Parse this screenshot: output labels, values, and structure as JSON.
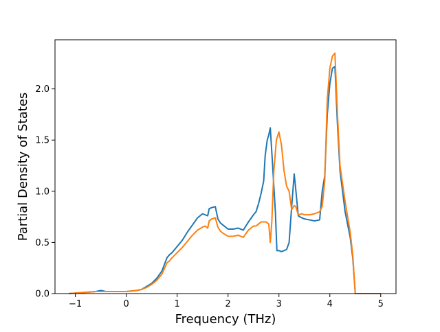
{
  "chart_data": {
    "type": "line",
    "title": "",
    "xlabel": "Frequency (THz)",
    "ylabel": "Partial Density of States",
    "xlim": [
      -1.4,
      5.3
    ],
    "ylim": [
      0,
      2.48
    ],
    "xticks": [
      -1,
      0,
      1,
      2,
      3,
      4,
      5
    ],
    "yticks": [
      0.0,
      0.5,
      1.0,
      1.5,
      2.0
    ],
    "ytick_labels": [
      "0.0",
      "0.5",
      "1.0",
      "1.5",
      "2.0"
    ],
    "grid": false,
    "legend": "none",
    "series": [
      {
        "color": "#1f77b4",
        "x": [
          -1.13,
          -0.6,
          -0.5,
          -0.4,
          -0.3,
          -0.2,
          0,
          0.2,
          0.3,
          0.4,
          0.5,
          0.6,
          0.7,
          0.8,
          0.85,
          0.9,
          1.0,
          1.1,
          1.2,
          1.3,
          1.4,
          1.5,
          1.55,
          1.6,
          1.63,
          1.68,
          1.75,
          1.8,
          1.85,
          1.9,
          2.0,
          2.1,
          2.2,
          2.3,
          2.4,
          2.5,
          2.55,
          2.6,
          2.65,
          2.7,
          2.73,
          2.77,
          2.8,
          2.83,
          2.87,
          2.93,
          2.96,
          3.0,
          3.05,
          3.15,
          3.2,
          3.25,
          3.3,
          3.33,
          3.38,
          3.45,
          3.5,
          3.6,
          3.7,
          3.8,
          3.85,
          3.9,
          3.95,
          4.0,
          4.05,
          4.1,
          4.15,
          4.2,
          4.3,
          4.4,
          4.45,
          4.5,
          4.6,
          5.0
        ],
        "y": [
          0.0,
          0.02,
          0.03,
          0.02,
          0.02,
          0.02,
          0.02,
          0.03,
          0.04,
          0.07,
          0.1,
          0.15,
          0.22,
          0.35,
          0.38,
          0.4,
          0.46,
          0.52,
          0.6,
          0.67,
          0.74,
          0.78,
          0.77,
          0.76,
          0.83,
          0.84,
          0.85,
          0.73,
          0.69,
          0.67,
          0.63,
          0.63,
          0.64,
          0.62,
          0.7,
          0.77,
          0.8,
          0.88,
          0.98,
          1.1,
          1.35,
          1.5,
          1.55,
          1.62,
          1.3,
          0.8,
          0.42,
          0.42,
          0.41,
          0.43,
          0.5,
          0.85,
          1.17,
          1.02,
          0.76,
          0.74,
          0.73,
          0.72,
          0.71,
          0.72,
          1.0,
          1.15,
          1.75,
          2.05,
          2.2,
          2.22,
          1.65,
          1.2,
          0.8,
          0.55,
          0.35,
          0.0,
          0.0,
          0.0
        ]
      },
      {
        "color": "#ff7f0e",
        "x": [
          -1.13,
          -0.6,
          -0.5,
          -0.4,
          -0.3,
          -0.2,
          0,
          0.2,
          0.3,
          0.4,
          0.5,
          0.6,
          0.7,
          0.8,
          0.85,
          0.9,
          1.0,
          1.1,
          1.2,
          1.3,
          1.4,
          1.5,
          1.55,
          1.6,
          1.63,
          1.68,
          1.75,
          1.8,
          1.85,
          1.9,
          2.0,
          2.1,
          2.2,
          2.3,
          2.4,
          2.5,
          2.55,
          2.6,
          2.65,
          2.7,
          2.75,
          2.8,
          2.83,
          2.86,
          2.9,
          2.95,
          3.0,
          3.05,
          3.1,
          3.15,
          3.2,
          3.25,
          3.3,
          3.33,
          3.38,
          3.45,
          3.5,
          3.6,
          3.7,
          3.8,
          3.85,
          3.9,
          3.95,
          4.0,
          4.05,
          4.1,
          4.15,
          4.2,
          4.3,
          4.4,
          4.45,
          4.5,
          4.6,
          5.0
        ],
        "y": [
          0.0,
          0.02,
          0.02,
          0.02,
          0.02,
          0.02,
          0.02,
          0.03,
          0.04,
          0.06,
          0.09,
          0.13,
          0.19,
          0.3,
          0.32,
          0.35,
          0.4,
          0.45,
          0.51,
          0.57,
          0.62,
          0.65,
          0.66,
          0.64,
          0.71,
          0.73,
          0.74,
          0.65,
          0.61,
          0.59,
          0.56,
          0.56,
          0.57,
          0.55,
          0.62,
          0.66,
          0.66,
          0.68,
          0.7,
          0.7,
          0.7,
          0.68,
          0.5,
          0.7,
          1.2,
          1.5,
          1.58,
          1.45,
          1.2,
          1.05,
          1.0,
          0.82,
          0.86,
          0.85,
          0.77,
          0.78,
          0.77,
          0.77,
          0.78,
          0.8,
          0.85,
          1.1,
          1.9,
          2.2,
          2.32,
          2.35,
          1.75,
          1.25,
          0.9,
          0.6,
          0.38,
          0.0,
          0.0,
          0.0
        ]
      }
    ]
  }
}
